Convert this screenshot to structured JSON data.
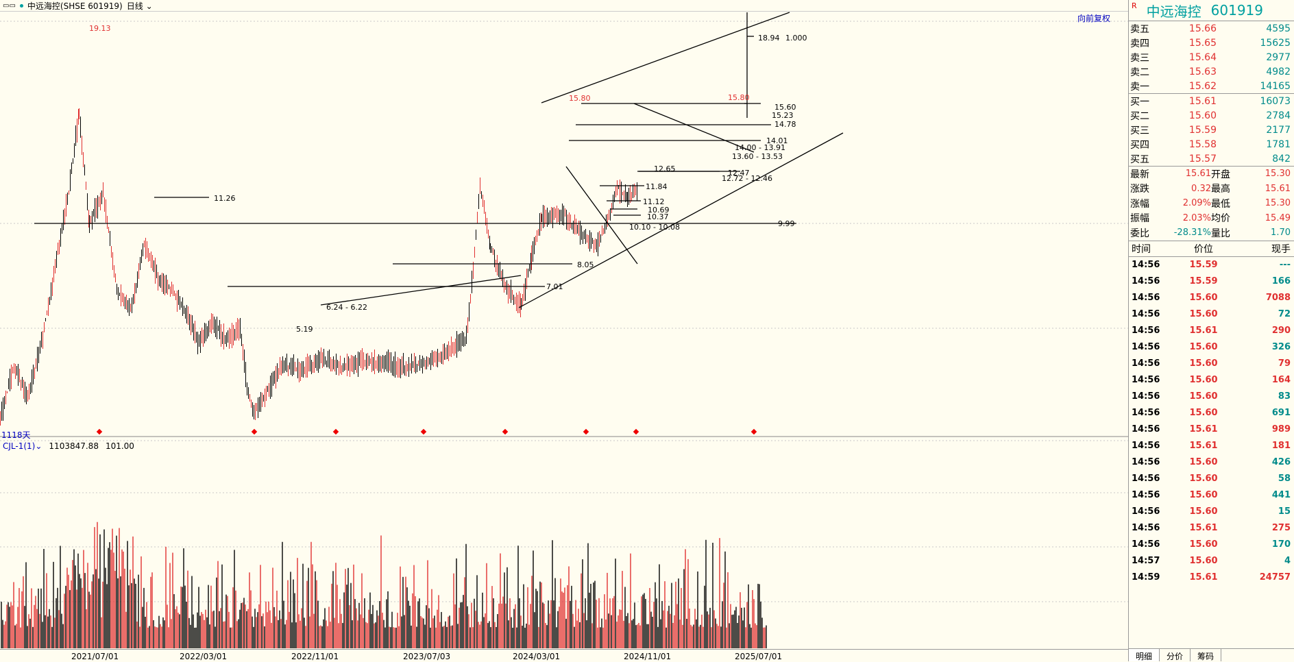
{
  "header": {
    "window_icon": "window-controls-icon",
    "title": "中远海控(SHSE 601919)",
    "period": "日线"
  },
  "chart": {
    "adjust_label": "向前复权",
    "days_label": "1118天",
    "volume_indicator": "CJL-1(1)",
    "volume_value": "1103847.88",
    "volume_extra": "101.00",
    "price_labels": [
      "19.13",
      "11.26",
      "5.19",
      "6.24 - 6.22",
      "7.01",
      "8.05",
      "9.99",
      "15.80",
      "15.80",
      "15.60",
      "15.23",
      "14.78",
      "14.01",
      "14.00 - 13.91",
      "13.60 - 13.53",
      "12.65",
      "12.47",
      "12.72 - 12.46",
      "11.84",
      "11.12",
      "10.69",
      "10.37",
      "10.10 - 10.08",
      "18.94",
      "1.000"
    ],
    "dates": [
      "2021/07/01",
      "2022/03/01",
      "2022/11/01",
      "2023/07/03",
      "2024/03/01",
      "2024/11/01",
      "2025/07/01"
    ]
  },
  "chart_data": {
    "type": "candlestick",
    "title": "中远海控(SHSE 601919)",
    "x": [
      "2021/07/01",
      "2022/03/01",
      "2022/11/01",
      "2023/07/03",
      "2024/03/01",
      "2024/11/01",
      "2025/07/01"
    ],
    "ylim": [
      4.5,
      20.0
    ],
    "close_approx": [
      [
        0,
        5.0
      ],
      [
        20,
        7.5
      ],
      [
        40,
        6.0
      ],
      [
        60,
        8.5
      ],
      [
        80,
        12.0
      ],
      [
        100,
        15.5
      ],
      [
        115,
        19.13
      ],
      [
        130,
        14.0
      ],
      [
        150,
        15.5
      ],
      [
        170,
        11.0
      ],
      [
        190,
        10.0
      ],
      [
        210,
        13.0
      ],
      [
        230,
        11.5
      ],
      [
        250,
        11.0
      ],
      [
        270,
        10.0
      ],
      [
        290,
        8.5
      ],
      [
        310,
        9.5
      ],
      [
        330,
        8.6
      ],
      [
        350,
        9.2
      ],
      [
        360,
        6.5
      ],
      [
        370,
        5.19
      ],
      [
        390,
        6.3
      ],
      [
        410,
        7.5
      ],
      [
        440,
        7.3
      ],
      [
        470,
        7.8
      ],
      [
        500,
        7.4
      ],
      [
        530,
        7.7
      ],
      [
        560,
        7.6
      ],
      [
        590,
        7.4
      ],
      [
        620,
        7.6
      ],
      [
        640,
        7.9
      ],
      [
        660,
        8.3
      ],
      [
        680,
        8.8
      ],
      [
        690,
        12.0
      ],
      [
        700,
        15.8
      ],
      [
        715,
        13.0
      ],
      [
        735,
        11.2
      ],
      [
        760,
        10.2
      ],
      [
        775,
        12.5
      ],
      [
        790,
        14.3
      ],
      [
        820,
        14.5
      ],
      [
        850,
        13.5
      ],
      [
        870,
        13.0
      ],
      [
        890,
        14.5
      ],
      [
        900,
        15.8
      ],
      [
        915,
        15.2
      ],
      [
        930,
        15.61
      ]
    ],
    "volume_max": 1103847.88
  },
  "orderbook": {
    "stock_name": "中远海控",
    "stock_code": "601919",
    "flag": "R",
    "asks": [
      {
        "label": "卖五",
        "price": "15.66",
        "vol": "4595"
      },
      {
        "label": "卖四",
        "price": "15.65",
        "vol": "15625"
      },
      {
        "label": "卖三",
        "price": "15.64",
        "vol": "2977"
      },
      {
        "label": "卖二",
        "price": "15.63",
        "vol": "4982"
      },
      {
        "label": "卖一",
        "price": "15.62",
        "vol": "14165"
      }
    ],
    "bids": [
      {
        "label": "买一",
        "price": "15.61",
        "vol": "16073"
      },
      {
        "label": "买二",
        "price": "15.60",
        "vol": "2784"
      },
      {
        "label": "买三",
        "price": "15.59",
        "vol": "2177"
      },
      {
        "label": "买四",
        "price": "15.58",
        "vol": "1781"
      },
      {
        "label": "买五",
        "price": "15.57",
        "vol": "842"
      }
    ]
  },
  "stats": [
    {
      "l1": "最新",
      "v1": "15.61",
      "c1": "red",
      "l2": "开盘",
      "v2": "15.30",
      "c2": "red"
    },
    {
      "l1": "涨跌",
      "v1": "0.32",
      "c1": "red",
      "l2": "最高",
      "v2": "15.61",
      "c2": "red"
    },
    {
      "l1": "涨幅",
      "v1": "2.09%",
      "c1": "red",
      "l2": "最低",
      "v2": "15.30",
      "c2": "red"
    },
    {
      "l1": "振幅",
      "v1": "2.03%",
      "c1": "red",
      "l2": "均价",
      "v2": "15.49",
      "c2": "red"
    },
    {
      "l1": "委比",
      "v1": "-28.31%",
      "c1": "teal",
      "l2": "量比",
      "v2": "1.70",
      "c2": "teal"
    }
  ],
  "ticks_header": {
    "time": "时间",
    "price": "价位",
    "vol": "现手"
  },
  "ticks": [
    {
      "time": "14:56",
      "price": "15.59",
      "vol": "---",
      "pc": "red",
      "vc": "teal"
    },
    {
      "time": "14:56",
      "price": "15.59",
      "vol": "166",
      "pc": "red",
      "vc": "teal"
    },
    {
      "time": "14:56",
      "price": "15.60",
      "vol": "7088",
      "pc": "red",
      "vc": "red"
    },
    {
      "time": "14:56",
      "price": "15.60",
      "vol": "72",
      "pc": "red",
      "vc": "teal"
    },
    {
      "time": "14:56",
      "price": "15.61",
      "vol": "290",
      "pc": "red",
      "vc": "red"
    },
    {
      "time": "14:56",
      "price": "15.60",
      "vol": "326",
      "pc": "red",
      "vc": "teal"
    },
    {
      "time": "14:56",
      "price": "15.60",
      "vol": "79",
      "pc": "red",
      "vc": "red"
    },
    {
      "time": "14:56",
      "price": "15.60",
      "vol": "164",
      "pc": "red",
      "vc": "red"
    },
    {
      "time": "14:56",
      "price": "15.60",
      "vol": "83",
      "pc": "red",
      "vc": "teal"
    },
    {
      "time": "14:56",
      "price": "15.60",
      "vol": "691",
      "pc": "red",
      "vc": "teal"
    },
    {
      "time": "14:56",
      "price": "15.61",
      "vol": "989",
      "pc": "red",
      "vc": "red"
    },
    {
      "time": "14:56",
      "price": "15.61",
      "vol": "181",
      "pc": "red",
      "vc": "red"
    },
    {
      "time": "14:56",
      "price": "15.60",
      "vol": "426",
      "pc": "red",
      "vc": "teal"
    },
    {
      "time": "14:56",
      "price": "15.60",
      "vol": "58",
      "pc": "red",
      "vc": "teal"
    },
    {
      "time": "14:56",
      "price": "15.60",
      "vol": "441",
      "pc": "red",
      "vc": "teal"
    },
    {
      "time": "14:56",
      "price": "15.60",
      "vol": "15",
      "pc": "red",
      "vc": "teal"
    },
    {
      "time": "14:56",
      "price": "15.61",
      "vol": "275",
      "pc": "red",
      "vc": "red"
    },
    {
      "time": "14:56",
      "price": "15.60",
      "vol": "170",
      "pc": "red",
      "vc": "teal"
    },
    {
      "time": "14:57",
      "price": "15.60",
      "vol": "4",
      "pc": "red",
      "vc": "teal"
    },
    {
      "time": "14:59",
      "price": "15.61",
      "vol": "24757",
      "pc": "red",
      "vc": "red"
    }
  ],
  "tabs": [
    "明细",
    "分价",
    "筹码"
  ],
  "colors": {
    "up": "#e03030",
    "down": "#000000",
    "teal": "#008b8b",
    "bg": "#fffdf0"
  }
}
